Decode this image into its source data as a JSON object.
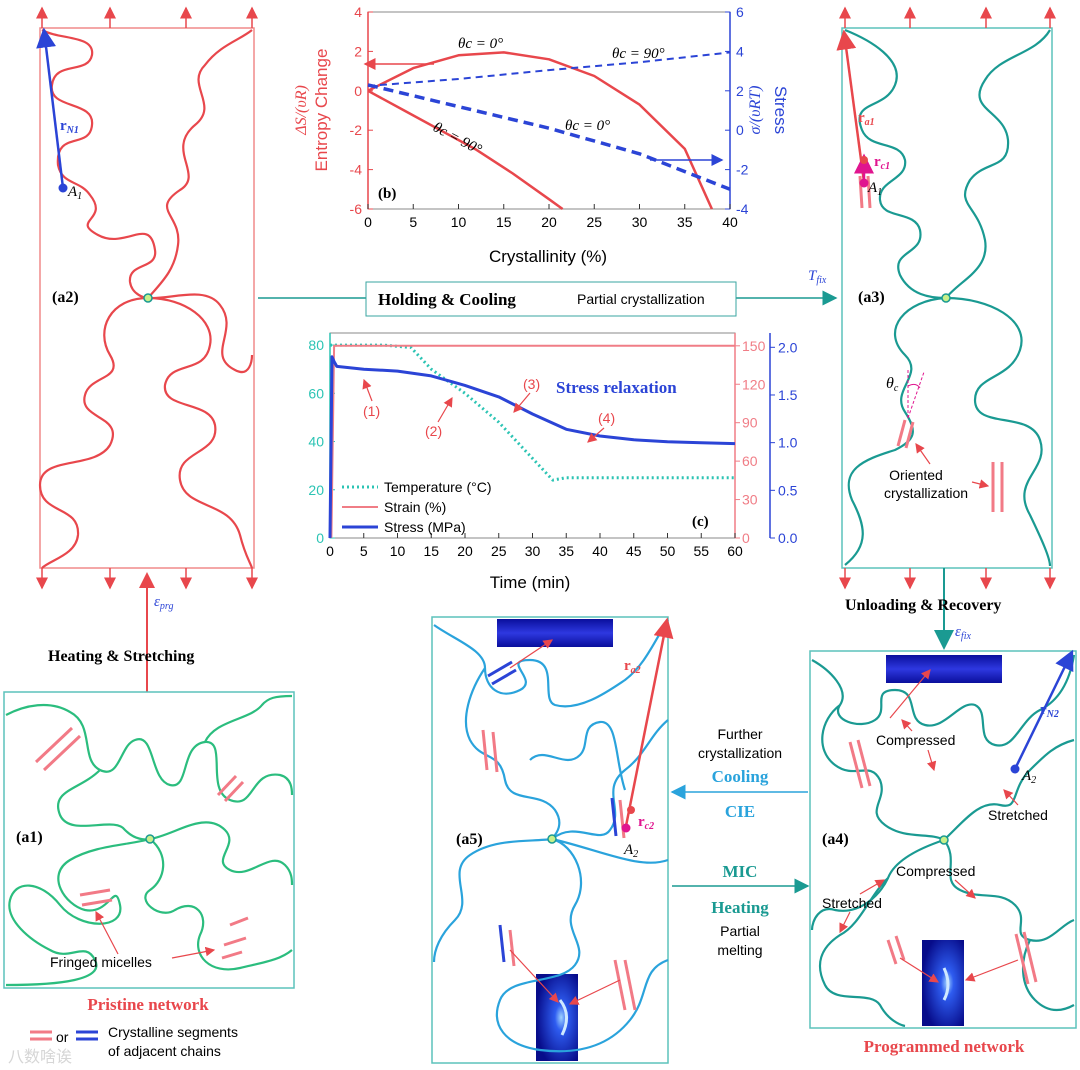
{
  "panels": {
    "a1": {
      "label": "(a1)",
      "caption": "Pristine network",
      "note": "Fringed micelles"
    },
    "a2": {
      "label": "(a2)",
      "vector": "r",
      "vector_sub": "N1",
      "point": "A",
      "point_sub": "1"
    },
    "a3": {
      "label": "(a3)",
      "vec1": "r",
      "vec1_sub": "a1",
      "vec2": "r",
      "vec2_sub": "c1",
      "point": "A",
      "point_sub": "1",
      "angle": "θ",
      "angle_sub": "c",
      "note_line1": "Oriented",
      "note_line2": "crystallization",
      "temp": "T",
      "temp_sub": "fix"
    },
    "a4": {
      "label": "(a4)",
      "vector": "r",
      "vector_sub": "N2",
      "point": "A",
      "point_sub": "2",
      "compressed1": "Compressed",
      "compressed2": "Compressed",
      "stretched1": "Stretched",
      "stretched2": "Stretched",
      "caption": "Programmed network"
    },
    "a5": {
      "label": "(a5)",
      "vec1": "r",
      "vec1_sub": "a2",
      "vec2": "r",
      "vec2_sub": "c2",
      "point": "A",
      "point_sub": "2"
    }
  },
  "processes": {
    "heating_stretching": "Heating & Stretching",
    "eps_prg": "ε",
    "eps_prg_sub": "prg",
    "holding_cooling": "Holding & Cooling",
    "partial_cryst": "Partial crystallization",
    "unloading_recovery": "Unloading & Recovery",
    "eps_fix": "ε",
    "eps_fix_sub": "fix",
    "further_1": "Further",
    "further_2": "crystallization",
    "cooling": "Cooling",
    "cie": "CIE",
    "mic": "MIC",
    "heating": "Heating",
    "partial_1": "Partial",
    "partial_2": "melting"
  },
  "legend": {
    "or": "or",
    "line1": "Crystalline segments",
    "line2": "of adjacent chains"
  },
  "watermark": "八数啥诶",
  "colors": {
    "red": "#e8474c",
    "teal": "#1a9a92",
    "blue": "#2b44d6",
    "sky": "#2aa3dc",
    "green": "#2bbd7e",
    "pink": "#f27a86",
    "magenta": "#e0158f"
  },
  "chart_b": {
    "type": "line",
    "panel_label": "(b)",
    "xlabel": "Crystallinity (%)",
    "ylabel_left_1": "ΔS/(υR)",
    "ylabel_left_2": "Entropy Change",
    "ylabel_right_1": "Stress",
    "ylabel_right_2": "σ/(υRT)",
    "x_ticks": [
      "0",
      "5",
      "10",
      "15",
      "20",
      "25",
      "30",
      "35",
      "40"
    ],
    "y_left_ticks": [
      "4",
      "2",
      "0",
      "-2",
      "-4",
      "-6"
    ],
    "y_right_ticks": [
      "6",
      "4",
      "2",
      "0",
      "-2",
      "-4"
    ],
    "xlim": [
      0,
      40
    ],
    "ylim_left": [
      -6,
      4
    ],
    "ylim_right": [
      -4,
      6
    ],
    "ann_entropy_0": "θc = 0°",
    "ann_entropy_90": "θc = 90°",
    "ann_stress_90": "θc = 90°",
    "ann_stress_0": "θc = 0°",
    "series": [
      {
        "name": "Entropy θc=0°",
        "axis": "left",
        "style": "solid",
        "x": [
          0,
          5,
          10,
          15,
          20,
          25,
          30,
          35,
          38
        ],
        "y": [
          0,
          1.15,
          1.8,
          1.95,
          1.6,
          0.75,
          -0.7,
          -2.95,
          -6
        ]
      },
      {
        "name": "Entropy θc=90°",
        "axis": "left",
        "style": "solid",
        "x": [
          0,
          4,
          8,
          12,
          16,
          20,
          21.5
        ],
        "y": [
          0,
          -1.0,
          -2.0,
          -3.0,
          -4.2,
          -5.5,
          -6
        ]
      },
      {
        "name": "Stress θc=90°",
        "axis": "right",
        "style": "dashed",
        "x": [
          0,
          10,
          20,
          30,
          40
        ],
        "y": [
          2.25,
          2.6,
          3.05,
          3.45,
          3.95
        ]
      },
      {
        "name": "Stress θc=0°",
        "axis": "right",
        "style": "dashed",
        "x": [
          0,
          10,
          20,
          30,
          40
        ],
        "y": [
          2.3,
          1.2,
          0.1,
          -1.2,
          -3.0
        ]
      }
    ]
  },
  "chart_c": {
    "type": "line",
    "panel_label": "(c)",
    "title": "Stress relaxation",
    "xlabel": "Time (min)",
    "x_ticks": [
      "0",
      "5",
      "10",
      "15",
      "20",
      "25",
      "30",
      "35",
      "40",
      "45",
      "50",
      "55",
      "60"
    ],
    "y_left_ticks": [
      "0",
      "20",
      "40",
      "60",
      "80"
    ],
    "y_mid_ticks": [
      "0",
      "30",
      "60",
      "90",
      "120",
      "150"
    ],
    "y_right_ticks": [
      "0.0",
      "0.5",
      "1.0",
      "1.5",
      "2.0"
    ],
    "xlim": [
      0,
      60
    ],
    "ylim_temp": [
      0,
      85
    ],
    "ylim_strain": [
      0,
      160
    ],
    "ylim_stress": [
      0,
      2.15
    ],
    "stage_labels": [
      "(1)",
      "(2)",
      "(3)",
      "(4)"
    ],
    "legend": [
      "Temperature (°C)",
      "Strain (%)",
      "Stress (MPa)"
    ],
    "series": [
      {
        "name": "Temperature (°C)",
        "axis": "left",
        "style": "dotted",
        "x": [
          0,
          1,
          8,
          12,
          15,
          20,
          25,
          30,
          33,
          35,
          40,
          50,
          60
        ],
        "y": [
          80,
          80,
          80,
          79,
          70,
          60,
          48,
          33,
          24,
          25,
          25,
          25,
          25
        ]
      },
      {
        "name": "Strain (%)",
        "axis": "mid",
        "style": "solid",
        "x": [
          0.2,
          0.6,
          60
        ],
        "y": [
          0,
          150,
          150
        ]
      },
      {
        "name": "Stress (MPa)",
        "axis": "right",
        "style": "solid",
        "x": [
          0,
          0.3,
          0.6,
          1,
          5,
          10,
          15,
          20,
          25,
          30,
          35,
          40,
          45,
          50,
          55,
          60
        ],
        "y": [
          0,
          1.9,
          1.85,
          1.8,
          1.77,
          1.75,
          1.7,
          1.6,
          1.48,
          1.3,
          1.14,
          1.07,
          1.03,
          1.01,
          1.0,
          0.99
        ]
      }
    ]
  }
}
